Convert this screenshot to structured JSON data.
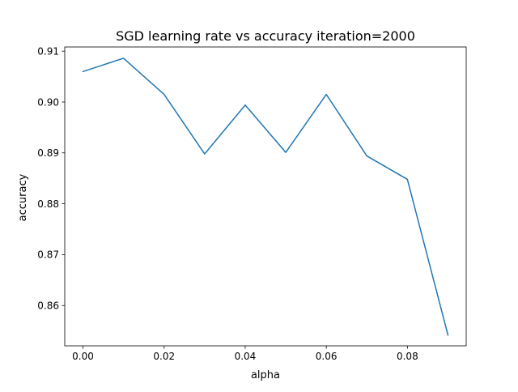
{
  "chart_data": {
    "type": "line",
    "title": "SGD learning rate vs accuracy iteration=2000",
    "xlabel": "alpha",
    "ylabel": "accuracy",
    "x": [
      0.0,
      0.01,
      0.02,
      0.03,
      0.04,
      0.05,
      0.06,
      0.07,
      0.08,
      0.09
    ],
    "series": [
      {
        "values": [
          0.906,
          0.9086,
          0.9015,
          0.8898,
          0.8994,
          0.8901,
          0.9015,
          0.8894,
          0.8848,
          0.8542
        ],
        "color": "#1f77b4"
      }
    ],
    "xlim": [
      -0.0045,
      0.0945
    ],
    "ylim": [
      0.85208,
      0.91082
    ],
    "xticks": [
      0.0,
      0.02,
      0.04,
      0.06,
      0.08
    ],
    "xtick_labels": [
      "0.00",
      "0.02",
      "0.04",
      "0.06",
      "0.08"
    ],
    "yticks": [
      0.86,
      0.87,
      0.88,
      0.89,
      0.9,
      0.91
    ],
    "ytick_labels": [
      "0.86",
      "0.87",
      "0.88",
      "0.89",
      "0.90",
      "0.91"
    ],
    "grid": false,
    "legend": "none"
  }
}
